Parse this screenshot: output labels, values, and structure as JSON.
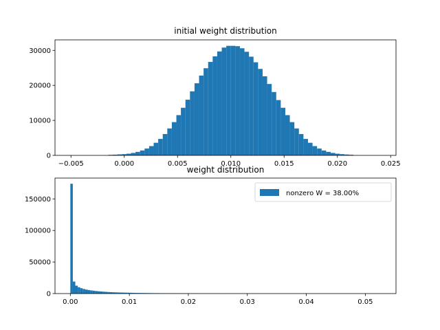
{
  "chart_data": [
    {
      "type": "bar",
      "title": "initial weight distribution",
      "xlabel": "",
      "ylabel": "",
      "xlim": [
        -0.0065,
        0.0255
      ],
      "ylim": [
        0,
        33000
      ],
      "xticks": [
        -0.005,
        0.0,
        0.005,
        0.01,
        0.015,
        0.02,
        0.025
      ],
      "xtick_labels": [
        "−0.005",
        "0.000",
        "0.005",
        "0.010",
        "0.015",
        "0.020",
        "0.025"
      ],
      "yticks": [
        0,
        10000,
        20000,
        30000
      ],
      "ytick_labels": [
        "0",
        "10000",
        "20000",
        "30000"
      ],
      "grid": false,
      "color": "#1f77b4",
      "bin_edges": [
        -0.0015,
        0.0215
      ],
      "values": [
        150,
        200,
        280,
        350,
        480,
        700,
        1000,
        1400,
        1950,
        2650,
        3600,
        4700,
        6100,
        7700,
        9500,
        11500,
        13600,
        15900,
        18300,
        20600,
        22800,
        24900,
        26700,
        28300,
        29700,
        30800,
        31300,
        31300,
        31200,
        30600,
        29600,
        28200,
        26600,
        24700,
        22600,
        20400,
        18100,
        15800,
        13600,
        11500,
        9500,
        7700,
        6100,
        4700,
        3600,
        2650,
        1950,
        1400,
        1000,
        700,
        480,
        350,
        250,
        180
      ]
    },
    {
      "type": "bar",
      "title": "weight distribution",
      "xlabel": "",
      "ylabel": "",
      "xlim": [
        -0.0026,
        0.0552
      ],
      "ylim": [
        0,
        183000
      ],
      "xticks": [
        0.0,
        0.01,
        0.02,
        0.03,
        0.04,
        0.05
      ],
      "xtick_labels": [
        "0.00",
        "0.01",
        "0.02",
        "0.03",
        "0.04",
        "0.05"
      ],
      "yticks": [
        0,
        50000,
        100000,
        150000
      ],
      "ytick_labels": [
        "0",
        "50000",
        "100000",
        "150000"
      ],
      "grid": false,
      "color": "#1f77b4",
      "legend": {
        "label": "nonzero W = 38.00%",
        "placement": "upper right"
      },
      "bin_edges": [
        0.0,
        0.0525
      ],
      "values": [
        174000,
        19000,
        12500,
        10000,
        8500,
        7200,
        6300,
        5600,
        5000,
        4500,
        4000,
        3600,
        3300,
        3000,
        2700,
        2400,
        2200,
        2000,
        1900,
        1700,
        1600,
        1500,
        1400,
        1300,
        1200,
        1100,
        1000,
        950,
        900,
        850,
        800,
        760,
        720,
        680,
        640,
        600,
        570,
        540,
        510,
        480,
        450,
        420,
        400,
        380,
        360,
        340,
        320,
        300,
        280,
        260,
        250,
        240,
        230,
        220,
        210,
        200,
        190,
        180,
        170,
        160,
        150,
        140,
        130,
        120,
        110,
        100,
        90,
        80,
        70,
        60,
        50,
        40,
        30,
        20,
        10,
        0,
        0,
        0,
        0,
        0,
        0,
        0,
        0,
        0,
        0,
        0,
        0,
        0,
        0,
        0,
        0,
        0,
        0,
        0,
        0,
        0,
        0,
        0,
        0,
        0,
        0,
        0,
        0,
        0,
        0,
        0,
        0,
        0,
        0,
        0,
        0,
        0,
        0,
        0,
        0,
        0,
        0,
        0,
        0,
        0,
        0,
        0,
        0,
        0,
        0
      ]
    }
  ]
}
